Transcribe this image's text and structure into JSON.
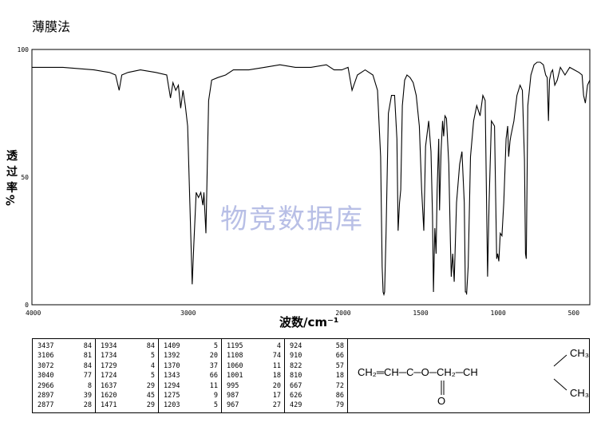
{
  "title": "薄膜法",
  "watermark": "物竞数据库",
  "chart_data": {
    "type": "line",
    "ylabel": "透过率%",
    "xlabel": "波数/cm⁻¹",
    "xlim": [
      4000,
      400
    ],
    "ylim": [
      0,
      100
    ],
    "x_ticks": [
      4000,
      3000,
      2000,
      1500,
      1000,
      500
    ],
    "y_ticks": [
      0,
      50,
      100
    ],
    "series": [
      {
        "x": [
          4000,
          3800,
          3600,
          3500,
          3460,
          3437,
          3420,
          3380,
          3300,
          3200,
          3130,
          3106,
          3090,
          3072,
          3055,
          3040,
          3025,
          3010,
          2995,
          2966,
          2955,
          2940,
          2925,
          2910,
          2897,
          2890,
          2877,
          2860,
          2840,
          2800,
          2750,
          2700,
          2600,
          2500,
          2400,
          2300,
          2200,
          2100,
          2050,
          2000,
          1960,
          1934,
          1900,
          1850,
          1800,
          1770,
          1750,
          1740,
          1734,
          1729,
          1724,
          1715,
          1700,
          1680,
          1660,
          1645,
          1637,
          1628,
          1620,
          1610,
          1595,
          1580,
          1560,
          1540,
          1520,
          1500,
          1485,
          1471,
          1460,
          1440,
          1425,
          1415,
          1409,
          1400,
          1392,
          1385,
          1375,
          1370,
          1360,
          1350,
          1343,
          1335,
          1325,
          1310,
          1300,
          1294,
          1285,
          1275,
          1260,
          1240,
          1225,
          1210,
          1203,
          1197,
          1195,
          1185,
          1170,
          1150,
          1130,
          1108,
          1090,
          1075,
          1060,
          1050,
          1035,
          1015,
          1001,
          995,
          987,
          978,
          967,
          955,
          940,
          930,
          924,
          915,
          910,
          890,
          870,
          850,
          835,
          822,
          815,
          810,
          800,
          780,
          760,
          740,
          720,
          700,
          685,
          675,
          667,
          660,
          650,
          640,
          626,
          610,
          590,
          560,
          530,
          500,
          470,
          450,
          440,
          429,
          415,
          400
        ],
        "y": [
          93,
          93,
          92,
          91,
          90,
          84,
          90,
          91,
          92,
          91,
          90,
          81,
          87,
          84,
          86,
          77,
          84,
          78,
          70,
          8,
          24,
          44,
          42,
          44,
          39,
          44,
          28,
          80,
          88,
          89,
          90,
          92,
          92,
          93,
          94,
          93,
          93,
          94,
          92,
          92,
          93,
          84,
          90,
          92,
          90,
          84,
          58,
          15,
          5,
          4,
          5,
          28,
          75,
          82,
          82,
          65,
          29,
          40,
          45,
          78,
          88,
          90,
          89,
          87,
          82,
          70,
          45,
          29,
          62,
          72,
          60,
          35,
          5,
          30,
          20,
          45,
          65,
          37,
          60,
          72,
          66,
          74,
          73,
          55,
          25,
          11,
          20,
          9,
          40,
          55,
          60,
          40,
          5,
          5,
          4,
          15,
          58,
          72,
          78,
          74,
          82,
          80,
          11,
          40,
          72,
          70,
          18,
          20,
          17,
          28,
          27,
          40,
          65,
          70,
          58,
          64,
          66,
          72,
          82,
          86,
          84,
          57,
          20,
          18,
          78,
          90,
          94,
          95,
          95,
          94,
          90,
          89,
          72,
          88,
          91,
          92,
          86,
          88,
          93,
          90,
          93,
          92,
          91,
          90,
          82,
          79,
          86,
          88
        ]
      }
    ],
    "peak_table": [
      [
        [
          "3437",
          "84"
        ],
        [
          "3106",
          "81"
        ],
        [
          "3072",
          "84"
        ],
        [
          "3040",
          "77"
        ],
        [
          "2966",
          "8"
        ],
        [
          "2897",
          "39"
        ],
        [
          "2877",
          "28"
        ]
      ],
      [
        [
          "1934",
          "84"
        ],
        [
          "1734",
          "5"
        ],
        [
          "1729",
          "4"
        ],
        [
          "1724",
          "5"
        ],
        [
          "1637",
          "29"
        ],
        [
          "1620",
          "45"
        ],
        [
          "1471",
          "29"
        ]
      ],
      [
        [
          "1409",
          "5"
        ],
        [
          "1392",
          "20"
        ],
        [
          "1370",
          "37"
        ],
        [
          "1343",
          "66"
        ],
        [
          "1294",
          "11"
        ],
        [
          "1275",
          "9"
        ],
        [
          "1203",
          "5"
        ]
      ],
      [
        [
          "1195",
          "4"
        ],
        [
          "1108",
          "74"
        ],
        [
          "1060",
          "11"
        ],
        [
          "1001",
          "18"
        ],
        [
          "995",
          "20"
        ],
        [
          "987",
          "17"
        ],
        [
          "967",
          "27"
        ]
      ],
      [
        [
          "924",
          "58"
        ],
        [
          "910",
          "66"
        ],
        [
          "822",
          "57"
        ],
        [
          "810",
          "18"
        ],
        [
          "667",
          "72"
        ],
        [
          "626",
          "86"
        ],
        [
          "429",
          "79"
        ]
      ]
    ]
  },
  "structure": {
    "left": "CH₂═CH─C─O─CH₂─CH",
    "top_branch": "CH₃",
    "bottom_branch": "CH₃",
    "carbonyl_o": "O"
  }
}
